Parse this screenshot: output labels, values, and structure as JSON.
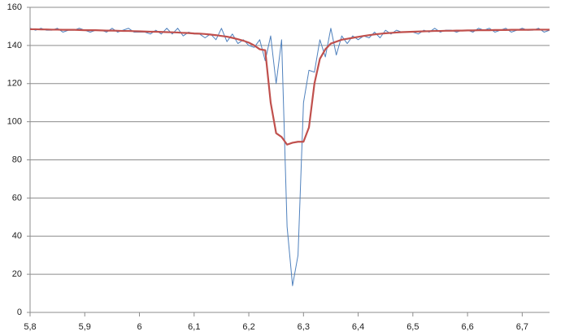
{
  "chart_data": {
    "type": "line",
    "x": [
      5.8,
      5.81,
      5.82,
      5.83,
      5.84,
      5.85,
      5.86,
      5.87,
      5.88,
      5.89,
      5.9,
      5.91,
      5.92,
      5.93,
      5.94,
      5.95,
      5.96,
      5.97,
      5.98,
      5.99,
      6.0,
      6.01,
      6.02,
      6.03,
      6.04,
      6.05,
      6.06,
      6.07,
      6.08,
      6.09,
      6.1,
      6.11,
      6.12,
      6.13,
      6.14,
      6.15,
      6.16,
      6.17,
      6.18,
      6.19,
      6.2,
      6.21,
      6.22,
      6.23,
      6.24,
      6.25,
      6.26,
      6.27,
      6.28,
      6.29,
      6.3,
      6.31,
      6.32,
      6.33,
      6.34,
      6.35,
      6.36,
      6.37,
      6.38,
      6.39,
      6.4,
      6.41,
      6.42,
      6.43,
      6.44,
      6.45,
      6.46,
      6.47,
      6.48,
      6.49,
      6.5,
      6.51,
      6.52,
      6.53,
      6.54,
      6.55,
      6.56,
      6.57,
      6.58,
      6.59,
      6.6,
      6.61,
      6.62,
      6.63,
      6.64,
      6.65,
      6.66,
      6.67,
      6.68,
      6.69,
      6.7,
      6.71,
      6.72,
      6.73,
      6.74,
      6.75
    ],
    "series": [
      {
        "color": "#4f81bd",
        "width": 1,
        "values": [
          149,
          148,
          149,
          148,
          148,
          149,
          147,
          148,
          148,
          149,
          148,
          147,
          148,
          148,
          147,
          149,
          147,
          148,
          149,
          147,
          147,
          147,
          146,
          148,
          146,
          149,
          146,
          149,
          145,
          147,
          146,
          146,
          144,
          146,
          143,
          149,
          142,
          146,
          141,
          143,
          140,
          139,
          143,
          132,
          145,
          120,
          143,
          45,
          14,
          30,
          110,
          127,
          126,
          143,
          134,
          149,
          135,
          145,
          141,
          145,
          143,
          145,
          144,
          147,
          144,
          148,
          146,
          148,
          147,
          147,
          147,
          146,
          148,
          147,
          149,
          147,
          148,
          148,
          147,
          148,
          148,
          147,
          149,
          148,
          149,
          147,
          148,
          149,
          147,
          148,
          149,
          148,
          148,
          149,
          147,
          148
        ]
      },
      {
        "color": "#c0504d",
        "width": 2.2,
        "values": [
          148.5,
          148.5,
          148.4,
          148.4,
          148.3,
          148.3,
          148.2,
          148.2,
          148.2,
          148.1,
          148,
          148,
          148,
          147.9,
          147.8,
          147.8,
          147.7,
          147.6,
          147.6,
          147.5,
          147.4,
          147.3,
          147.2,
          147.2,
          147.1,
          147,
          146.9,
          146.8,
          146.6,
          146.5,
          146.3,
          146.2,
          146,
          145.7,
          145.4,
          145,
          144.6,
          144,
          143.3,
          142.5,
          141.5,
          140,
          138,
          137.5,
          110,
          94,
          92,
          88,
          89,
          89.5,
          89.5,
          97,
          120,
          133,
          138,
          141,
          142,
          143,
          143.5,
          144,
          144.5,
          145,
          145.4,
          145.8,
          146.1,
          146.4,
          146.6,
          146.8,
          147,
          147.1,
          147.2,
          147.3,
          147.4,
          147.5,
          147.6,
          147.6,
          147.7,
          147.7,
          147.8,
          147.8,
          147.9,
          147.9,
          148,
          148,
          148,
          148.1,
          148.1,
          148.1,
          148.2,
          148.2,
          148.2,
          148.2,
          148.3,
          148.3,
          148.3,
          148.3
        ]
      }
    ],
    "xlim": [
      5.8,
      6.75
    ],
    "xticks": [
      {
        "value": 5.8,
        "label": "5,8"
      },
      {
        "value": 5.9,
        "label": "5,9"
      },
      {
        "value": 6.0,
        "label": "6"
      },
      {
        "value": 6.1,
        "label": "6,1"
      },
      {
        "value": 6.2,
        "label": "6,2"
      },
      {
        "value": 6.3,
        "label": "6,3"
      },
      {
        "value": 6.4,
        "label": "6,4"
      },
      {
        "value": 6.5,
        "label": "6,5"
      },
      {
        "value": 6.6,
        "label": "6,6"
      },
      {
        "value": 6.7,
        "label": "6,7"
      }
    ],
    "ylim": [
      0,
      160
    ],
    "yticks": [
      0,
      20,
      40,
      60,
      80,
      100,
      120,
      140,
      160
    ],
    "grid": true
  }
}
